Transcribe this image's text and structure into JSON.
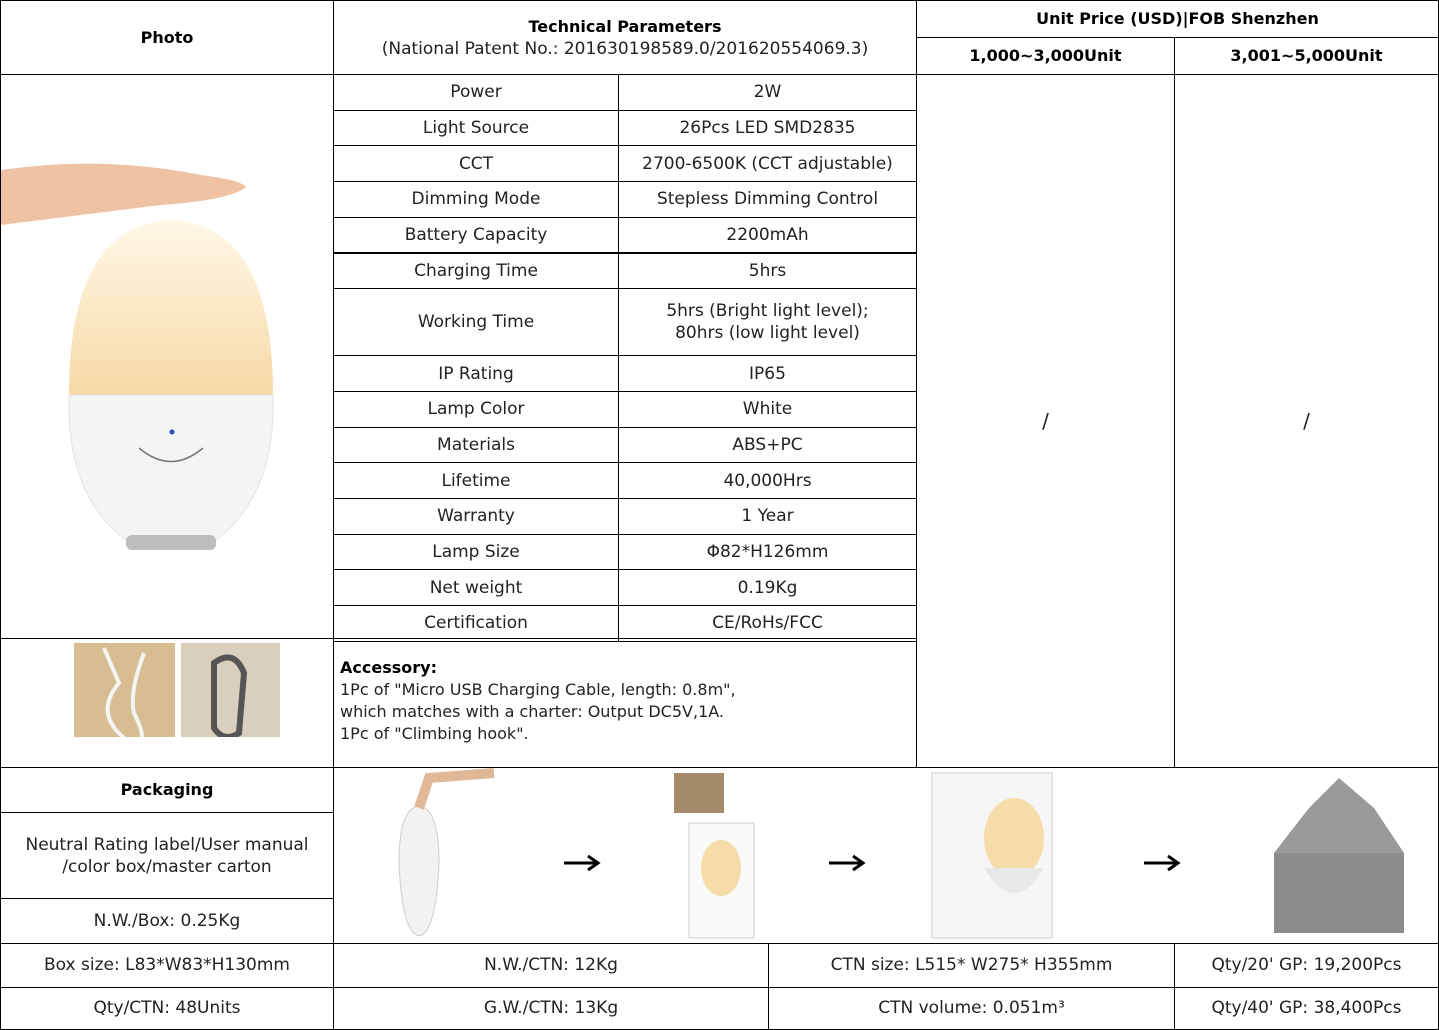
{
  "header": {
    "photo": "Photo",
    "technical_title": "Technical Parameters",
    "patent": "(National Patent No.: 201630198589.0/201620554069.3)",
    "price_title": "Unit Price (USD)|FOB Shenzhen",
    "tier1": "1,000~3,000Unit",
    "tier2": "3,001~5,000Unit"
  },
  "specs": [
    {
      "label": "Power",
      "value": "2W"
    },
    {
      "label": "Light Source",
      "value": "26Pcs LED SMD2835"
    },
    {
      "label": "CCT",
      "value": "2700-6500K (CCT adjustable)"
    },
    {
      "label": "Dimming Mode",
      "value": "Stepless Dimming Control"
    },
    {
      "label": "Battery Capacity",
      "value": "2200mAh"
    },
    {
      "label": "Charging Time",
      "value": "5hrs"
    },
    {
      "label": "Working Time",
      "value": "5hrs (Bright light level);\n80hrs (low light level)"
    },
    {
      "label": "IP Rating",
      "value": "IP65"
    },
    {
      "label": "Lamp Color",
      "value": "White"
    },
    {
      "label": "Materials",
      "value": "ABS+PC"
    },
    {
      "label": "Lifetime",
      "value": "40,000Hrs"
    },
    {
      "label": "Warranty",
      "value": "1 Year"
    },
    {
      "label": "Lamp Size",
      "value": "Φ82*H126mm"
    },
    {
      "label": "Net weight",
      "value": "0.19Kg"
    },
    {
      "label": "Certification",
      "value": "CE/RoHs/FCC"
    }
  ],
  "prices": [
    "/",
    "/"
  ],
  "accessory": {
    "title": "Accessory:",
    "lines": [
      "1Pc of \"Micro USB Charging Cable, length: 0.8m\",",
      "which matches with a charter: Output DC5V,1A.",
      "1Pc of \"Climbing hook\"."
    ]
  },
  "packaging": {
    "title": "Packaging",
    "description": "Neutral Rating label/User manual\n/color box/master carton",
    "nw_box": "N.W./Box: 0.25Kg"
  },
  "bottom_rows": [
    [
      "Box size: L83*W83*H130mm",
      "N.W./CTN: 12Kg",
      "CTN size: L515* W275* H355mm",
      "Qty/20' GP: 19,200Pcs"
    ],
    [
      "Qty/CTN: 48Units",
      "G.W./CTN: 13Kg",
      "CTN volume: 0.051m³",
      "Qty/40' GP: 38,400Pcs"
    ]
  ]
}
